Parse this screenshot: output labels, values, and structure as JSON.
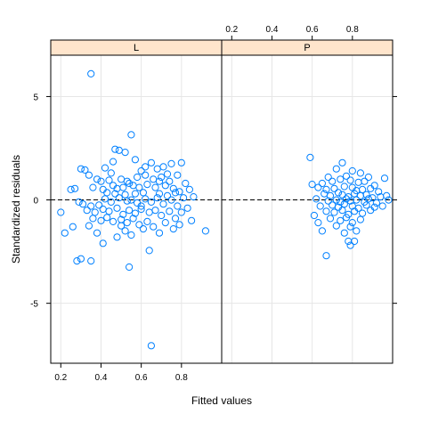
{
  "chart_data": {
    "type": "scatter",
    "xlabel": "Fitted values",
    "ylabel": "Standardized residuals",
    "xlim": [
      0.15,
      1.0
    ],
    "ylim": [
      -7.9,
      7.0
    ],
    "xticks": [
      0.2,
      0.4,
      0.6,
      0.8
    ],
    "xtick_labels": [
      "0.2",
      "0.4",
      "0.6",
      "0.8"
    ],
    "yticks": [
      -5,
      0,
      5
    ],
    "ytick_labels": [
      "-5",
      "0",
      "5"
    ],
    "grid": true,
    "reference_line": 0,
    "colors": {
      "point": "#0080ff",
      "strip": "#ffe5cc",
      "grid": "#e6e6e6"
    },
    "panels": [
      {
        "label": "L",
        "points": [
          [
            0.35,
            6.1
          ],
          [
            0.55,
            3.15
          ],
          [
            0.47,
            2.45
          ],
          [
            0.49,
            2.4
          ],
          [
            0.52,
            2.3
          ],
          [
            0.65,
            1.8
          ],
          [
            0.75,
            1.75
          ],
          [
            0.3,
            1.5
          ],
          [
            0.32,
            1.45
          ],
          [
            0.42,
            1.55
          ],
          [
            0.45,
            1.3
          ],
          [
            0.6,
            1.4
          ],
          [
            0.68,
            1.5
          ],
          [
            0.8,
            1.8
          ],
          [
            0.71,
            1.6
          ],
          [
            0.34,
            1.2
          ],
          [
            0.38,
            1.0
          ],
          [
            0.4,
            0.9
          ],
          [
            0.44,
            0.95
          ],
          [
            0.5,
            1.0
          ],
          [
            0.53,
            0.9
          ],
          [
            0.58,
            1.1
          ],
          [
            0.62,
            1.2
          ],
          [
            0.66,
            1.0
          ],
          [
            0.7,
            1.1
          ],
          [
            0.74,
            0.9
          ],
          [
            0.78,
            1.2
          ],
          [
            0.82,
            0.8
          ],
          [
            0.84,
            0.5
          ],
          [
            0.27,
            0.55
          ],
          [
            0.25,
            0.5
          ],
          [
            0.36,
            0.6
          ],
          [
            0.41,
            0.5
          ],
          [
            0.46,
            0.7
          ],
          [
            0.48,
            0.55
          ],
          [
            0.51,
            0.6
          ],
          [
            0.54,
            0.8
          ],
          [
            0.56,
            0.7
          ],
          [
            0.59,
            0.6
          ],
          [
            0.63,
            0.75
          ],
          [
            0.67,
            0.6
          ],
          [
            0.72,
            0.7
          ],
          [
            0.76,
            0.55
          ],
          [
            0.79,
            0.4
          ],
          [
            0.43,
            0.35
          ],
          [
            0.47,
            0.3
          ],
          [
            0.52,
            0.25
          ],
          [
            0.57,
            0.3
          ],
          [
            0.61,
            0.35
          ],
          [
            0.69,
            0.3
          ],
          [
            0.73,
            0.2
          ],
          [
            0.81,
            0.1
          ],
          [
            0.86,
            0.15
          ],
          [
            0.31,
            -0.2
          ],
          [
            0.35,
            -0.3
          ],
          [
            0.39,
            -0.25
          ],
          [
            0.42,
            0.05
          ],
          [
            0.45,
            -0.1
          ],
          [
            0.49,
            0.1
          ],
          [
            0.53,
            -0.05
          ],
          [
            0.55,
            0.0
          ],
          [
            0.58,
            -0.15
          ],
          [
            0.62,
            0.05
          ],
          [
            0.65,
            -0.1
          ],
          [
            0.68,
            0.1
          ],
          [
            0.71,
            -0.2
          ],
          [
            0.75,
            0.0
          ],
          [
            0.78,
            -0.3
          ],
          [
            0.83,
            -0.4
          ],
          [
            0.33,
            -0.5
          ],
          [
            0.37,
            -0.6
          ],
          [
            0.41,
            -0.45
          ],
          [
            0.44,
            -0.55
          ],
          [
            0.48,
            -0.4
          ],
          [
            0.51,
            -0.7
          ],
          [
            0.54,
            -0.5
          ],
          [
            0.57,
            -0.65
          ],
          [
            0.6,
            -0.45
          ],
          [
            0.64,
            -0.6
          ],
          [
            0.67,
            -0.5
          ],
          [
            0.7,
            -0.75
          ],
          [
            0.74,
            -0.55
          ],
          [
            0.77,
            -0.9
          ],
          [
            0.8,
            -0.6
          ],
          [
            0.36,
            -0.9
          ],
          [
            0.4,
            -1.0
          ],
          [
            0.43,
            -0.85
          ],
          [
            0.46,
            -1.05
          ],
          [
            0.5,
            -0.95
          ],
          [
            0.53,
            -1.1
          ],
          [
            0.56,
            -0.9
          ],
          [
            0.59,
            -1.2
          ],
          [
            0.63,
            -1.05
          ],
          [
            0.66,
            -1.3
          ],
          [
            0.72,
            -1.1
          ],
          [
            0.76,
            -1.4
          ],
          [
            0.79,
            -1.2
          ],
          [
            0.85,
            -1.0
          ],
          [
            0.92,
            -1.5
          ],
          [
            0.2,
            -0.6
          ],
          [
            0.22,
            -1.6
          ],
          [
            0.26,
            -1.3
          ],
          [
            0.34,
            -1.25
          ],
          [
            0.38,
            -1.6
          ],
          [
            0.52,
            -1.5
          ],
          [
            0.55,
            -1.7
          ],
          [
            0.61,
            -1.4
          ],
          [
            0.69,
            -1.6
          ],
          [
            0.41,
            -2.1
          ],
          [
            0.48,
            -1.8
          ],
          [
            0.28,
            -2.95
          ],
          [
            0.3,
            -2.85
          ],
          [
            0.35,
            -2.95
          ],
          [
            0.54,
            -3.25
          ],
          [
            0.64,
            -2.45
          ],
          [
            0.65,
            -7.05
          ],
          [
            0.29,
            -0.1
          ],
          [
            0.46,
            1.85
          ],
          [
            0.57,
            1.95
          ],
          [
            0.62,
            1.6
          ],
          [
            0.73,
            1.25
          ],
          [
            0.6,
            -0.3
          ],
          [
            0.69,
            0.9
          ],
          [
            0.77,
            0.35
          ],
          [
            0.5,
            -1.25
          ]
        ]
      },
      {
        "label": "P",
        "points": [
          [
            0.59,
            2.05
          ],
          [
            0.75,
            1.8
          ],
          [
            0.72,
            1.5
          ],
          [
            0.8,
            1.4
          ],
          [
            0.84,
            1.3
          ],
          [
            0.68,
            1.1
          ],
          [
            0.77,
            1.15
          ],
          [
            0.88,
            1.1
          ],
          [
            0.65,
            0.8
          ],
          [
            0.7,
            0.9
          ],
          [
            0.74,
            1.0
          ],
          [
            0.79,
            0.95
          ],
          [
            0.83,
            0.85
          ],
          [
            0.86,
            0.9
          ],
          [
            0.91,
            0.7
          ],
          [
            0.96,
            1.05
          ],
          [
            0.63,
            0.6
          ],
          [
            0.67,
            0.5
          ],
          [
            0.71,
            0.55
          ],
          [
            0.76,
            0.65
          ],
          [
            0.8,
            0.6
          ],
          [
            0.82,
            0.45
          ],
          [
            0.85,
            0.5
          ],
          [
            0.89,
            0.55
          ],
          [
            0.93,
            0.4
          ],
          [
            0.66,
            0.3
          ],
          [
            0.69,
            0.2
          ],
          [
            0.73,
            0.35
          ],
          [
            0.75,
            0.25
          ],
          [
            0.78,
            0.15
          ],
          [
            0.81,
            0.3
          ],
          [
            0.84,
            0.2
          ],
          [
            0.87,
            0.25
          ],
          [
            0.9,
            0.1
          ],
          [
            0.94,
            0.15
          ],
          [
            0.97,
            0.2
          ],
          [
            0.62,
            0.05
          ],
          [
            0.68,
            -0.05
          ],
          [
            0.72,
            0.0
          ],
          [
            0.74,
            -0.1
          ],
          [
            0.77,
            0.05
          ],
          [
            0.79,
            -0.05
          ],
          [
            0.82,
            0.0
          ],
          [
            0.86,
            -0.1
          ],
          [
            0.88,
            0.05
          ],
          [
            0.92,
            -0.15
          ],
          [
            0.64,
            -0.3
          ],
          [
            0.7,
            -0.25
          ],
          [
            0.73,
            -0.35
          ],
          [
            0.76,
            -0.2
          ],
          [
            0.8,
            -0.3
          ],
          [
            0.83,
            -0.4
          ],
          [
            0.87,
            -0.25
          ],
          [
            0.91,
            -0.35
          ],
          [
            0.95,
            -0.3
          ],
          [
            0.61,
            -0.75
          ],
          [
            0.67,
            -0.55
          ],
          [
            0.71,
            -0.6
          ],
          [
            0.75,
            -0.5
          ],
          [
            0.78,
            -0.7
          ],
          [
            0.81,
            -0.55
          ],
          [
            0.85,
            -0.65
          ],
          [
            0.89,
            -0.5
          ],
          [
            0.69,
            -0.9
          ],
          [
            0.74,
            -1.0
          ],
          [
            0.77,
            -0.85
          ],
          [
            0.8,
            -1.1
          ],
          [
            0.84,
            -0.95
          ],
          [
            0.63,
            -1.1
          ],
          [
            0.72,
            -1.25
          ],
          [
            0.79,
            -1.3
          ],
          [
            0.82,
            -1.5
          ],
          [
            0.65,
            -1.5
          ],
          [
            0.76,
            -1.6
          ],
          [
            0.78,
            -2.0
          ],
          [
            0.79,
            -2.2
          ],
          [
            0.81,
            -2.0
          ],
          [
            0.67,
            -2.7
          ],
          [
            0.6,
            0.75
          ],
          [
            0.98,
            0.0
          ]
        ]
      }
    ]
  }
}
